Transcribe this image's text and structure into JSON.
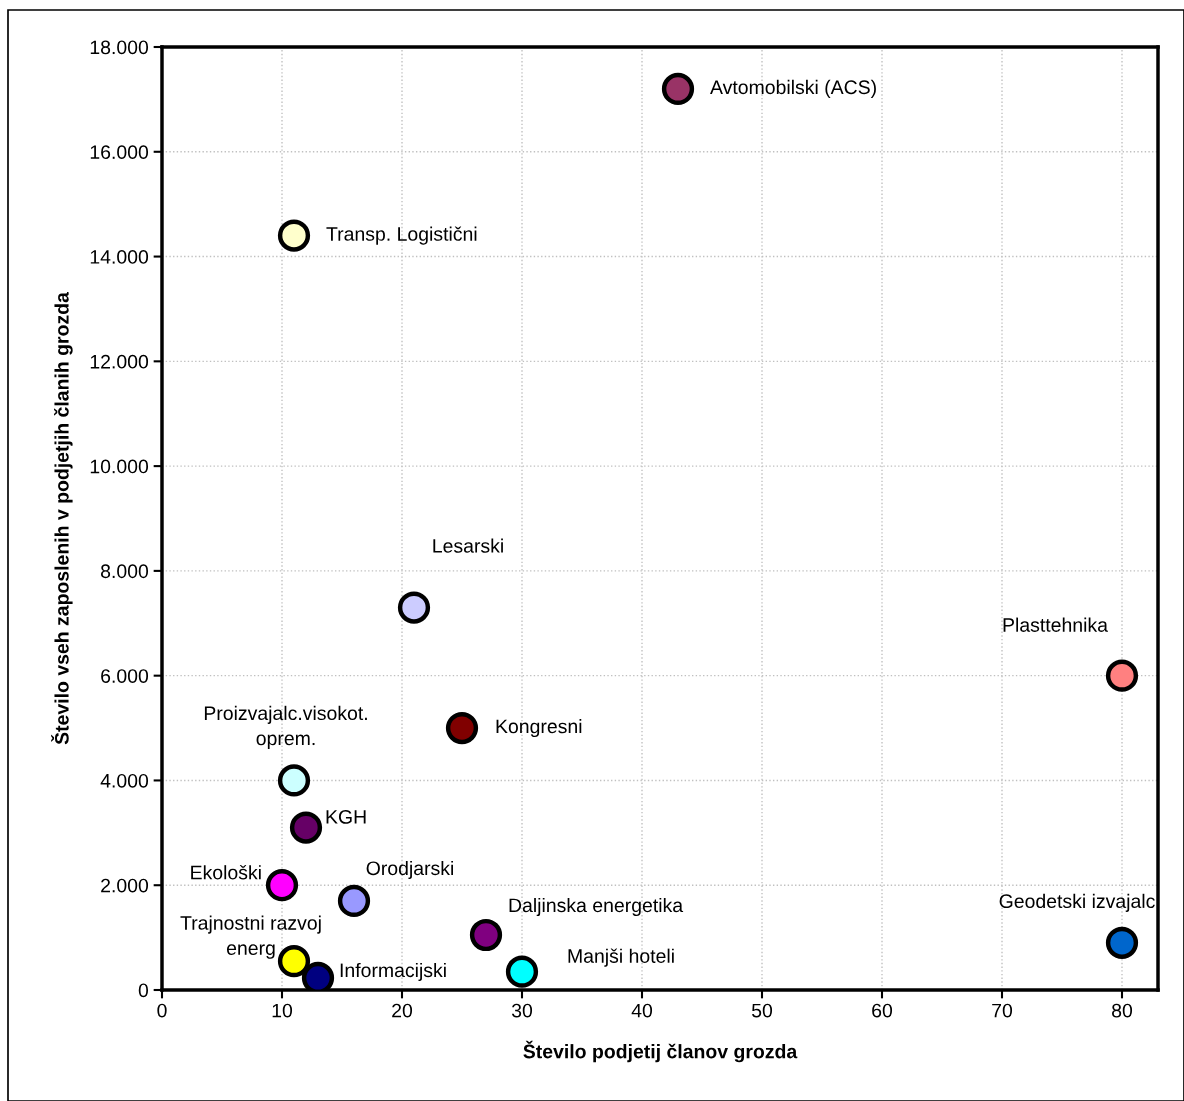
{
  "chart_data": {
    "type": "scatter",
    "xlabel": "Število podjetij članov grozda",
    "ylabel": "Število vseh zaposlenih v podjetjih članih grozda",
    "xlim": [
      0,
      83
    ],
    "xticks": [
      0,
      10,
      20,
      30,
      40,
      50,
      60,
      70,
      80
    ],
    "ylim": [
      0,
      18000
    ],
    "yticks": [
      {
        "value": 0,
        "label": "0"
      },
      {
        "value": 2000,
        "label": "2.000"
      },
      {
        "value": 4000,
        "label": "4.000"
      },
      {
        "value": 6000,
        "label": "6.000"
      },
      {
        "value": 8000,
        "label": "8.000"
      },
      {
        "value": 10000,
        "label": "10.000"
      },
      {
        "value": 12000,
        "label": "12.000"
      },
      {
        "value": 14000,
        "label": "14.000"
      },
      {
        "value": 16000,
        "label": "16.000"
      },
      {
        "value": 18000,
        "label": "18.000"
      }
    ],
    "grid": true,
    "legend": false,
    "marker": "circle",
    "series": [
      {
        "name": "Avtomobilski (ACS)",
        "color": "#993366",
        "x": [
          43
        ],
        "values": [
          17200
        ]
      },
      {
        "name": "Transp. Logistični",
        "color": "#ffffcc",
        "x": [
          11
        ],
        "values": [
          14400
        ]
      },
      {
        "name": "Lesarski",
        "color": "#ccccff",
        "x": [
          21
        ],
        "values": [
          7300
        ]
      },
      {
        "name": "Plasttehnika",
        "color": "#ff8080",
        "x": [
          80
        ],
        "values": [
          6000
        ]
      },
      {
        "name": "Kongresni",
        "color": "#800000",
        "x": [
          25
        ],
        "values": [
          5000
        ]
      },
      {
        "name": "Proizvajalc.visokot.\noprem.",
        "color": "#ccffff",
        "x": [
          11
        ],
        "values": [
          4000
        ]
      },
      {
        "name": "KGH",
        "color": "#660066",
        "x": [
          12
        ],
        "values": [
          3100
        ]
      },
      {
        "name": "Ekološki",
        "color": "#ff00ff",
        "x": [
          10
        ],
        "values": [
          2000
        ]
      },
      {
        "name": "Orodjarski",
        "color": "#9999ff",
        "x": [
          16
        ],
        "values": [
          1700
        ]
      },
      {
        "name": "Daljinska energetika",
        "color": "#800080",
        "x": [
          27
        ],
        "values": [
          1050
        ]
      },
      {
        "name": "Manjši hoteli",
        "color": "#00ffff",
        "x": [
          30
        ],
        "values": [
          350
        ]
      },
      {
        "name": "Trajnostni razvoj\nenerg",
        "color": "#ffff00",
        "x": [
          11
        ],
        "values": [
          550
        ]
      },
      {
        "name": "Informacijski",
        "color": "#000080",
        "x": [
          13
        ],
        "values": [
          230
        ]
      },
      {
        "name": "Geodetski izvajalc",
        "color": "#0066cc",
        "x": [
          80
        ],
        "values": [
          900
        ]
      }
    ]
  }
}
